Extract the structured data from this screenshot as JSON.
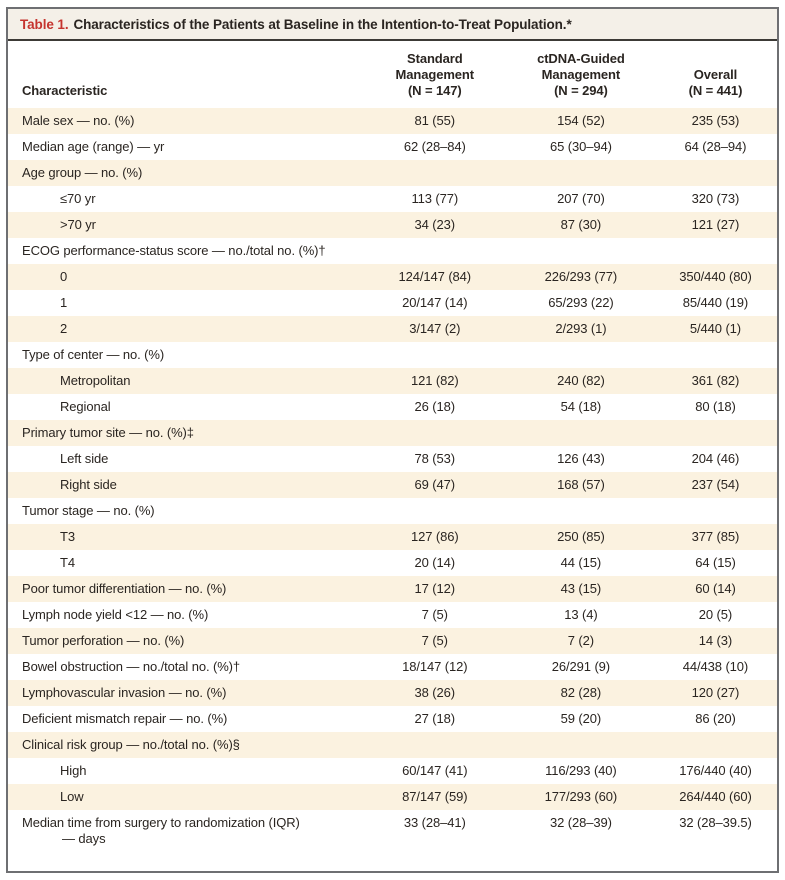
{
  "theme": {
    "accent_red": "#c5342e",
    "row_stripe_cream": "#fbf2e0",
    "title_bar_bg": "#f4f0e8",
    "rule_dark": "#3c3a36",
    "border_gray": "#6e6f72",
    "text_color": "#2a2521"
  },
  "table": {
    "label": "Table 1.",
    "title": "Characteristics of the Patients at Baseline in the Intention-to-Treat Population.*",
    "columns": [
      {
        "name": "characteristic",
        "lines": [
          "Characteristic"
        ]
      },
      {
        "name": "standard-management",
        "lines": [
          "Standard",
          "Management",
          "(N = 147)"
        ]
      },
      {
        "name": "ctdna-guided-management",
        "lines": [
          "ctDNA-Guided",
          "Management",
          "(N = 294)"
        ]
      },
      {
        "name": "overall",
        "lines": [
          "Overall",
          "(N = 441)"
        ]
      }
    ],
    "rows": [
      {
        "label": "Male sex — no. (%)",
        "values": [
          "81 (55)",
          "154 (52)",
          "235 (53)"
        ]
      },
      {
        "label": "Median age (range) — yr",
        "values": [
          "62 (28–84)",
          "65 (30–94)",
          "64 (28–94)"
        ]
      },
      {
        "label": "Age group — no. (%)",
        "section": true
      },
      {
        "label": "≤70 yr",
        "indent": 1,
        "values": [
          "113 (77)",
          "207 (70)",
          "320 (73)"
        ]
      },
      {
        "label": ">70 yr",
        "indent": 1,
        "values": [
          "34 (23)",
          "87 (30)",
          "121 (27)"
        ]
      },
      {
        "label": "ECOG performance-status score — no./total no. (%)†",
        "section": true
      },
      {
        "label": "0",
        "indent": 1,
        "values": [
          "124/147 (84)",
          "226/293 (77)",
          "350/440 (80)"
        ]
      },
      {
        "label": "1",
        "indent": 1,
        "values": [
          "20/147 (14)",
          "65/293 (22)",
          "85/440 (19)"
        ]
      },
      {
        "label": "2",
        "indent": 1,
        "values": [
          "3/147 (2)",
          "2/293 (1)",
          "5/440 (1)"
        ]
      },
      {
        "label": "Type of center — no. (%)",
        "section": true
      },
      {
        "label": "Metropolitan",
        "indent": 1,
        "values": [
          "121 (82)",
          "240 (82)",
          "361 (82)"
        ]
      },
      {
        "label": "Regional",
        "indent": 1,
        "values": [
          "26 (18)",
          "54 (18)",
          "80 (18)"
        ]
      },
      {
        "label": "Primary tumor site — no. (%)‡",
        "section": true
      },
      {
        "label": "Left side",
        "indent": 1,
        "values": [
          "78 (53)",
          "126 (43)",
          "204 (46)"
        ]
      },
      {
        "label": "Right side",
        "indent": 1,
        "values": [
          "69 (47)",
          "168 (57)",
          "237 (54)"
        ]
      },
      {
        "label": "Tumor stage — no. (%)",
        "section": true
      },
      {
        "label": "T3",
        "indent": 1,
        "values": [
          "127 (86)",
          "250 (85)",
          "377 (85)"
        ]
      },
      {
        "label": "T4",
        "indent": 1,
        "values": [
          "20 (14)",
          "44 (15)",
          "64 (15)"
        ]
      },
      {
        "label": "Poor tumor differentiation — no. (%)",
        "values": [
          "17 (12)",
          "43 (15)",
          "60 (14)"
        ]
      },
      {
        "label": "Lymph node yield <12 — no. (%)",
        "values": [
          "7 (5)",
          "13 (4)",
          "20 (5)"
        ]
      },
      {
        "label": "Tumor perforation — no. (%)",
        "values": [
          "7 (5)",
          "7 (2)",
          "14 (3)"
        ]
      },
      {
        "label": "Bowel obstruction — no./total no. (%)†",
        "values": [
          "18/147 (12)",
          "26/291 (9)",
          "44/438 (10)"
        ]
      },
      {
        "label": "Lymphovascular invasion — no. (%)",
        "values": [
          "38 (26)",
          "82 (28)",
          "120 (27)"
        ]
      },
      {
        "label": "Deficient mismatch repair — no. (%)",
        "values": [
          "27 (18)",
          "59 (20)",
          "86 (20)"
        ]
      },
      {
        "label": "Clinical risk group — no./total no. (%)§",
        "section": true
      },
      {
        "label": "High",
        "indent": 1,
        "values": [
          "60/147 (41)",
          "116/293 (40)",
          "176/440 (40)"
        ]
      },
      {
        "label": "Low",
        "indent": 1,
        "values": [
          "87/147 (59)",
          "177/293 (60)",
          "264/440 (60)"
        ]
      },
      {
        "label": "Median time from surgery to randomization (IQR)",
        "label2": "— days",
        "values": [
          "33 (28–41)",
          "32 (28–39)",
          "32 (28–39.5)"
        ]
      }
    ]
  }
}
